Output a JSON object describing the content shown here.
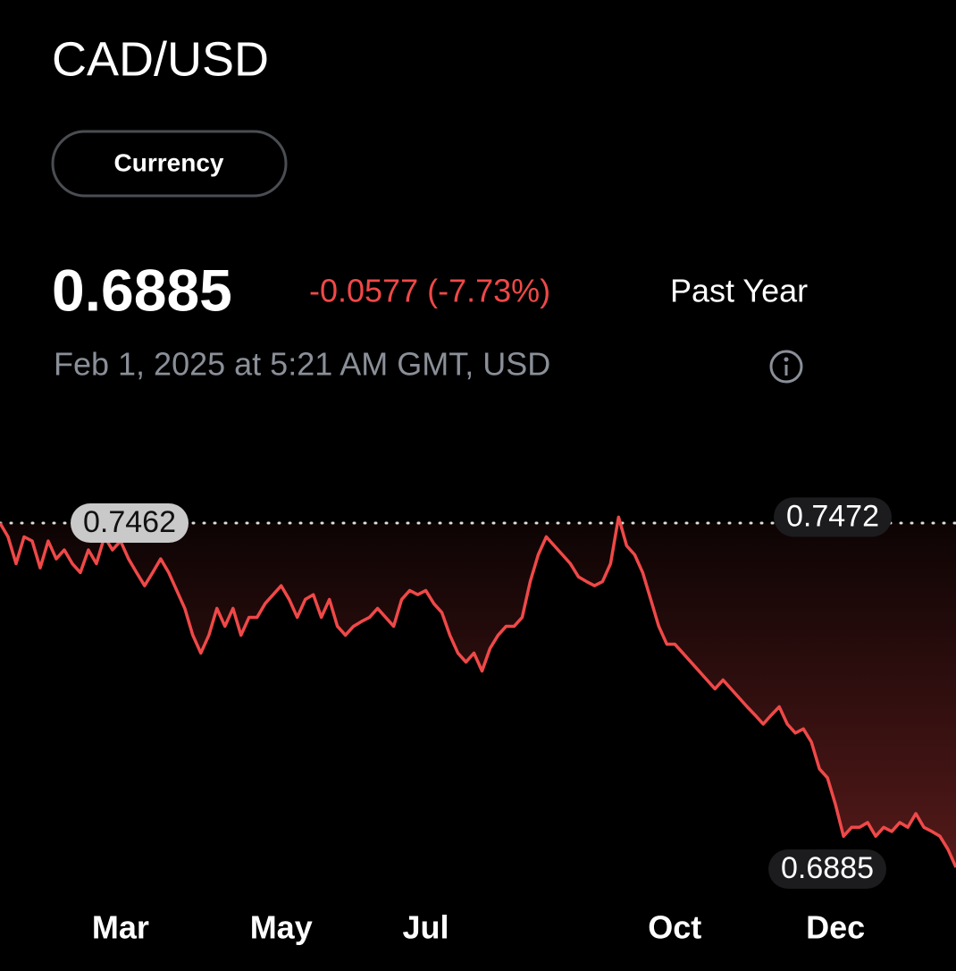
{
  "header": {
    "title": "CAD/USD",
    "tag": "Currency",
    "price": "0.6885",
    "change": "-0.0577 (-7.73%)",
    "period": "Past Year",
    "timestamp": "Feb 1, 2025 at 5:21 AM GMT, USD"
  },
  "chart_data": {
    "type": "line",
    "categories": [
      null,
      null,
      null,
      null,
      null,
      null,
      null,
      null,
      null,
      null,
      null,
      null,
      null,
      null,
      null,
      "Mar",
      null,
      null,
      null,
      null,
      null,
      null,
      null,
      null,
      null,
      null,
      null,
      null,
      null,
      null,
      null,
      null,
      null,
      null,
      null,
      "May",
      null,
      null,
      null,
      null,
      null,
      null,
      null,
      null,
      null,
      null,
      null,
      null,
      null,
      null,
      null,
      null,
      null,
      "Jul",
      null,
      null,
      null,
      null,
      null,
      null,
      null,
      null,
      null,
      null,
      null,
      null,
      null,
      null,
      null,
      null,
      null,
      null,
      null,
      null,
      null,
      null,
      null,
      null,
      null,
      null,
      null,
      null,
      null,
      null,
      "Oct",
      null,
      null,
      null,
      null,
      null,
      null,
      null,
      null,
      null,
      null,
      null,
      null,
      null,
      null,
      null,
      null,
      null,
      null,
      null,
      "Dec",
      null,
      null,
      null,
      null,
      null,
      null,
      null,
      null,
      null,
      null,
      null,
      null,
      null,
      null,
      null
    ],
    "series": [
      {
        "name": "CAD/USD",
        "color": "#f04848",
        "values": [
          0.7462,
          0.7439,
          0.7394,
          0.7439,
          0.7432,
          0.7387,
          0.7432,
          0.7402,
          0.7417,
          0.7394,
          0.7379,
          0.7417,
          0.7394,
          0.7439,
          0.7417,
          0.7432,
          0.7402,
          0.7379,
          0.7357,
          0.7379,
          0.7402,
          0.7379,
          0.7349,
          0.7319,
          0.7274,
          0.7244,
          0.7274,
          0.7319,
          0.7289,
          0.7319,
          0.7274,
          0.7304,
          0.7304,
          0.7327,
          0.7342,
          0.7357,
          0.7334,
          0.7304,
          0.7334,
          0.7342,
          0.7304,
          0.7334,
          0.7289,
          0.7274,
          0.7289,
          0.7297,
          0.7304,
          0.7319,
          0.7304,
          0.7289,
          0.7334,
          0.7349,
          0.7342,
          0.7349,
          0.7327,
          0.7312,
          0.7274,
          0.7244,
          0.7229,
          0.7244,
          0.7214,
          0.7252,
          0.7274,
          0.7289,
          0.7289,
          0.7304,
          0.7364,
          0.7409,
          0.7439,
          0.7424,
          0.7409,
          0.7394,
          0.7372,
          0.7364,
          0.7357,
          0.7364,
          0.7394,
          0.7472,
          0.7424,
          0.7409,
          0.7379,
          0.7334,
          0.7289,
          0.7259,
          0.7259,
          0.7244,
          0.7229,
          0.7214,
          0.7199,
          0.7184,
          0.7199,
          0.7184,
          0.7169,
          0.7154,
          0.714,
          0.7125,
          0.714,
          0.7154,
          0.7125,
          0.711,
          0.7117,
          0.7095,
          0.705,
          0.7035,
          0.699,
          0.6937,
          0.6952,
          0.6952,
          0.696,
          0.6937,
          0.6952,
          0.6945,
          0.696,
          0.6952,
          0.6975,
          0.6952,
          0.6945,
          0.6937,
          0.6915,
          0.6885
        ]
      }
    ],
    "ylim": [
      0.684,
      0.7525
    ]
  }
}
